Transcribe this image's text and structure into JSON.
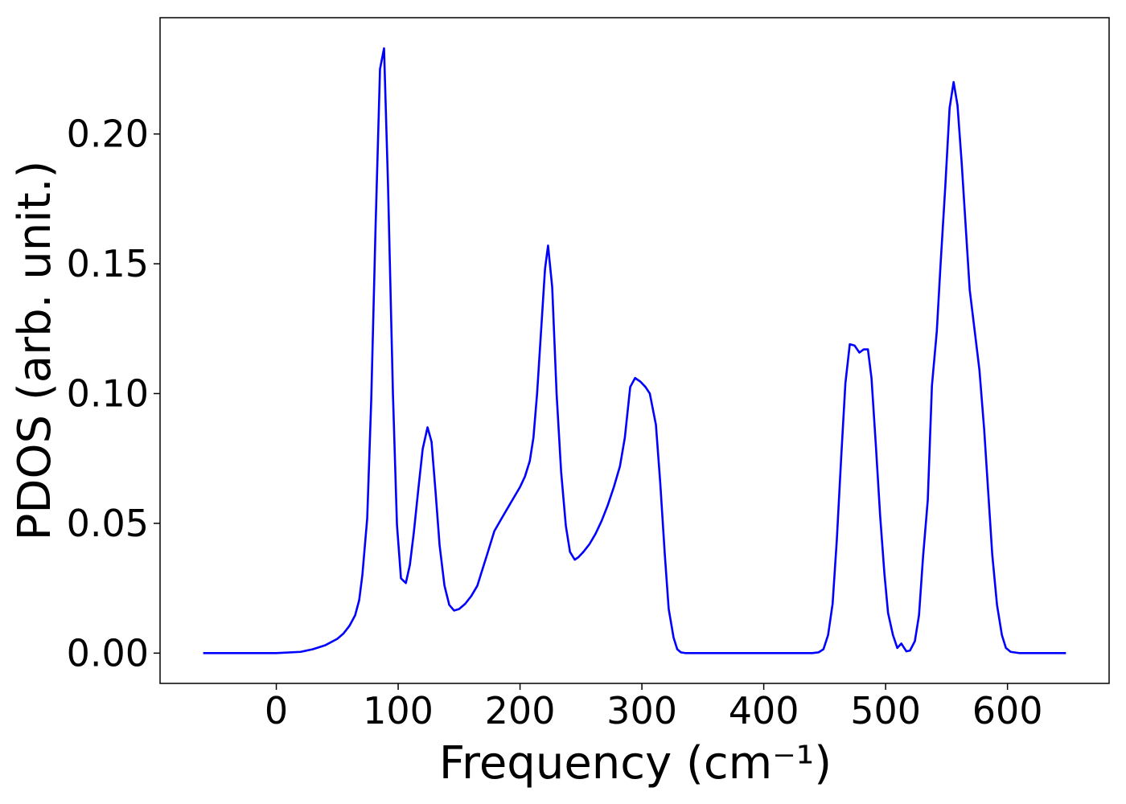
{
  "chart_data": {
    "type": "line",
    "x_label": "Frequency (cm⁻¹)",
    "y_label": "PDOS (arb. unit.)",
    "xlim": [
      -95.4,
      683.4
    ],
    "ylim": [
      -0.01166,
      0.2448
    ],
    "xticks": [
      0,
      100,
      200,
      300,
      400,
      500,
      600
    ],
    "yticks": [
      {
        "value": 0,
        "label": "0.00"
      },
      {
        "value": 0.05,
        "label": "0.05"
      },
      {
        "value": 0.1,
        "label": "0.10"
      },
      {
        "value": 0.15,
        "label": "0.15"
      },
      {
        "value": 0.2,
        "label": "0.20"
      }
    ],
    "series": [
      {
        "color": "#0000ff",
        "x": [
          -60,
          0,
          20,
          30,
          40,
          50,
          55,
          60,
          64.7,
          68,
          70.6,
          74.6,
          77.9,
          81.5,
          85.1,
          88.4,
          91.7,
          95.7,
          99,
          102.3,
          106.3,
          109.6,
          112.9,
          116.5,
          120.1,
          124.1,
          127.4,
          130.7,
          134,
          138,
          141.9,
          145.9,
          150,
          155,
          160,
          165,
          168.3,
          173,
          178.9,
          185,
          190,
          195,
          200,
          204,
          208,
          211,
          214,
          220.5,
          223,
          226.4,
          230,
          233.7,
          237.6,
          241,
          244.9,
          248,
          252,
          257,
          262,
          267,
          272,
          277,
          282,
          286,
          290.4,
          294.4,
          299,
          303,
          306.5,
          309,
          311.5,
          315,
          318.8,
          322,
          326,
          329,
          332,
          336,
          440,
          445,
          449,
          452.8,
          456.5,
          460,
          463.5,
          467,
          470.6,
          474.5,
          478.5,
          482,
          485.5,
          488.4,
          492,
          495.5,
          499,
          502,
          506,
          509.6,
          512.9,
          517,
          520,
          524,
          527.4,
          530.7,
          534.6,
          538,
          542,
          545,
          549,
          552.5,
          555.8,
          559,
          562.4,
          569,
          577,
          580.9,
          587.5,
          591.4,
          595.4,
          598.7,
          602.6,
          610,
          648
        ],
        "values": [
          0,
          0,
          0.0005,
          0.0015,
          0.003,
          0.0055,
          0.0075,
          0.0105,
          0.0146,
          0.0204,
          0.03,
          0.052,
          0.0975,
          0.165,
          0.225,
          0.233,
          0.18,
          0.1,
          0.0495,
          0.0288,
          0.027,
          0.034,
          0.0467,
          0.063,
          0.0786,
          0.087,
          0.0814,
          0.062,
          0.0415,
          0.026,
          0.0186,
          0.0164,
          0.017,
          0.019,
          0.022,
          0.026,
          0.031,
          0.038,
          0.047,
          0.052,
          0.056,
          0.06,
          0.064,
          0.068,
          0.074,
          0.083,
          0.1,
          0.148,
          0.157,
          0.141,
          0.1,
          0.07,
          0.049,
          0.039,
          0.036,
          0.037,
          0.039,
          0.042,
          0.046,
          0.051,
          0.057,
          0.064,
          0.072,
          0.083,
          0.1025,
          0.106,
          0.1045,
          0.1025,
          0.1,
          0.094,
          0.088,
          0.066,
          0.038,
          0.017,
          0.006,
          0.0015,
          0.0003,
          0,
          0,
          0.0003,
          0.0015,
          0.007,
          0.019,
          0.044,
          0.075,
          0.104,
          0.119,
          0.1185,
          0.1158,
          0.117,
          0.117,
          0.106,
          0.08,
          0.053,
          0.0307,
          0.0155,
          0.007,
          0.002,
          0.0037,
          0.0007,
          0.001,
          0.0046,
          0.0146,
          0.037,
          0.059,
          0.103,
          0.124,
          0.149,
          0.18,
          0.21,
          0.22,
          0.211,
          0.189,
          0.14,
          0.109,
          0.086,
          0.038,
          0.0186,
          0.007,
          0.002,
          0.0005,
          0,
          0
        ]
      }
    ]
  }
}
